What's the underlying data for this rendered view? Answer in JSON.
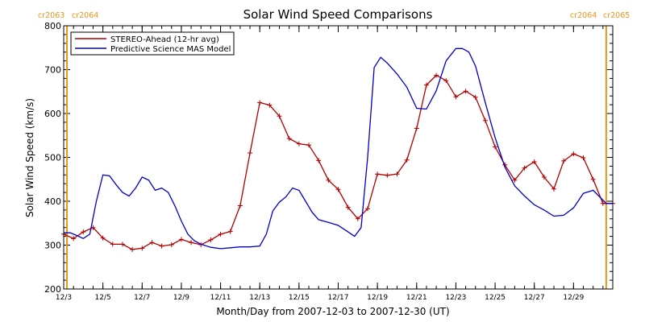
{
  "chart_data": {
    "type": "line",
    "title": "Solar Wind Speed Comparisons",
    "xlabel": "Month/Day from 2007-12-03 to 2007-12-30 (UT)",
    "ylabel": "Solar Wind Speed (km/s)",
    "xlim": [
      "2007-12-03",
      "2007-12-31"
    ],
    "ylim": [
      200,
      800
    ],
    "y_ticks": [
      200,
      300,
      400,
      500,
      600,
      700,
      800
    ],
    "x_ticks": [
      {
        "date": "2007-12-03",
        "label": "12/3"
      },
      {
        "date": "2007-12-05",
        "label": "12/5"
      },
      {
        "date": "2007-12-07",
        "label": "12/7"
      },
      {
        "date": "2007-12-09",
        "label": "12/9"
      },
      {
        "date": "2007-12-11",
        "label": "12/11"
      },
      {
        "date": "2007-12-13",
        "label": "12/13"
      },
      {
        "date": "2007-12-15",
        "label": "12/15"
      },
      {
        "date": "2007-12-17",
        "label": "12/17"
      },
      {
        "date": "2007-12-19",
        "label": "12/19"
      },
      {
        "date": "2007-12-21",
        "label": "12/21"
      },
      {
        "date": "2007-12-23",
        "label": "12/23"
      },
      {
        "date": "2007-12-25",
        "label": "12/25"
      },
      {
        "date": "2007-12-27",
        "label": "12/27"
      },
      {
        "date": "2007-12-29",
        "label": "12/29"
      }
    ],
    "grid": false,
    "legend_position": "top-left",
    "carrington_markers": [
      {
        "date": "2007-12-03T04:00",
        "color": "#e8951a",
        "labels": [
          "cr2063",
          "cr2064"
        ],
        "label_anchor": "left"
      },
      {
        "date": "2007-12-30T16:00",
        "color": "#e8951a",
        "labels": [
          "cr2064",
          "cr2065"
        ],
        "label_anchor": "right"
      }
    ],
    "series": [
      {
        "name": "STEREO-Ahead (12-hr avg)",
        "color": "#b00000",
        "marker": "plus",
        "x": [
          "2007-12-03T00:00",
          "2007-12-03T12:00",
          "2007-12-04T00:00",
          "2007-12-04T12:00",
          "2007-12-05T00:00",
          "2007-12-05T12:00",
          "2007-12-06T00:00",
          "2007-12-06T12:00",
          "2007-12-07T00:00",
          "2007-12-07T12:00",
          "2007-12-08T00:00",
          "2007-12-08T12:00",
          "2007-12-09T00:00",
          "2007-12-09T12:00",
          "2007-12-10T00:00",
          "2007-12-10T12:00",
          "2007-12-11T00:00",
          "2007-12-11T12:00",
          "2007-12-12T00:00",
          "2007-12-12T12:00",
          "2007-12-13T00:00",
          "2007-12-13T12:00",
          "2007-12-14T00:00",
          "2007-12-14T12:00",
          "2007-12-15T00:00",
          "2007-12-15T12:00",
          "2007-12-16T00:00",
          "2007-12-16T12:00",
          "2007-12-17T00:00",
          "2007-12-17T12:00",
          "2007-12-18T00:00",
          "2007-12-18T12:00",
          "2007-12-19T00:00",
          "2007-12-19T12:00",
          "2007-12-20T00:00",
          "2007-12-20T12:00",
          "2007-12-21T00:00",
          "2007-12-21T12:00",
          "2007-12-22T00:00",
          "2007-12-22T12:00",
          "2007-12-23T00:00",
          "2007-12-23T12:00",
          "2007-12-24T00:00",
          "2007-12-24T12:00",
          "2007-12-25T00:00",
          "2007-12-25T12:00",
          "2007-12-26T00:00",
          "2007-12-26T12:00",
          "2007-12-27T00:00",
          "2007-12-27T12:00",
          "2007-12-28T00:00",
          "2007-12-28T12:00",
          "2007-12-29T00:00",
          "2007-12-29T12:00",
          "2007-12-30T00:00",
          "2007-12-30T12:00",
          "2007-12-31T00:00"
        ],
        "y": [
          325,
          315,
          330,
          340,
          316,
          302,
          302,
          290,
          293,
          306,
          298,
          301,
          313,
          306,
          301,
          312,
          325,
          331,
          390,
          510,
          625,
          619,
          594,
          543,
          531,
          528,
          493,
          448,
          427,
          386,
          360,
          383,
          462,
          459,
          462,
          494,
          566,
          665,
          687,
          675,
          638,
          651,
          637,
          584,
          524,
          483,
          448,
          476,
          490,
          455,
          428,
          492,
          508,
          499,
          450,
          395,
          395
        ]
      },
      {
        "name": "Predictive Science MAS Model",
        "color": "#0000c8",
        "marker": "none",
        "x": [
          "2007-12-03T00:00",
          "2007-12-03T08:00",
          "2007-12-03T16:00",
          "2007-12-04T00:00",
          "2007-12-04T08:00",
          "2007-12-04T16:00",
          "2007-12-05T00:00",
          "2007-12-05T08:00",
          "2007-12-05T16:00",
          "2007-12-06T00:00",
          "2007-12-06T08:00",
          "2007-12-06T16:00",
          "2007-12-07T00:00",
          "2007-12-07T08:00",
          "2007-12-07T16:00",
          "2007-12-08T00:00",
          "2007-12-08T08:00",
          "2007-12-08T16:00",
          "2007-12-09T00:00",
          "2007-12-09T08:00",
          "2007-12-09T16:00",
          "2007-12-10T00:00",
          "2007-12-10T12:00",
          "2007-12-11T00:00",
          "2007-12-11T12:00",
          "2007-12-12T00:00",
          "2007-12-12T12:00",
          "2007-12-13T00:00",
          "2007-12-13T08:00",
          "2007-12-13T16:00",
          "2007-12-14T00:00",
          "2007-12-14T08:00",
          "2007-12-14T16:00",
          "2007-12-15T00:00",
          "2007-12-15T08:00",
          "2007-12-15T16:00",
          "2007-12-16T00:00",
          "2007-12-16T12:00",
          "2007-12-17T00:00",
          "2007-12-17T12:00",
          "2007-12-17T20:00",
          "2007-12-18T04:00",
          "2007-12-18T12:00",
          "2007-12-18T20:00",
          "2007-12-19T04:00",
          "2007-12-19T12:00",
          "2007-12-20T00:00",
          "2007-12-20T12:00",
          "2007-12-21T00:00",
          "2007-12-21T12:00",
          "2007-12-22T00:00",
          "2007-12-22T12:00",
          "2007-12-23T00:00",
          "2007-12-23T08:00",
          "2007-12-23T16:00",
          "2007-12-24T00:00",
          "2007-12-24T12:00",
          "2007-12-25T00:00",
          "2007-12-25T12:00",
          "2007-12-26T00:00",
          "2007-12-26T12:00",
          "2007-12-27T00:00",
          "2007-12-27T12:00",
          "2007-12-28T00:00",
          "2007-12-28T12:00",
          "2007-12-29T00:00",
          "2007-12-29T12:00",
          "2007-12-30T00:00",
          "2007-12-30T08:00",
          "2007-12-30T16:00",
          "2007-12-31T00:00"
        ],
        "y": [
          328,
          328,
          322,
          315,
          325,
          400,
          460,
          458,
          438,
          420,
          412,
          430,
          455,
          448,
          425,
          430,
          420,
          390,
          355,
          325,
          310,
          302,
          295,
          292,
          294,
          296,
          296,
          298,
          325,
          378,
          398,
          410,
          430,
          425,
          400,
          375,
          358,
          352,
          345,
          330,
          320,
          340,
          500,
          705,
          728,
          715,
          690,
          660,
          612,
          610,
          652,
          720,
          748,
          748,
          740,
          708,
          625,
          545,
          478,
          435,
          412,
          392,
          380,
          366,
          368,
          385,
          418,
          425,
          410,
          395,
          395
        ]
      }
    ]
  }
}
